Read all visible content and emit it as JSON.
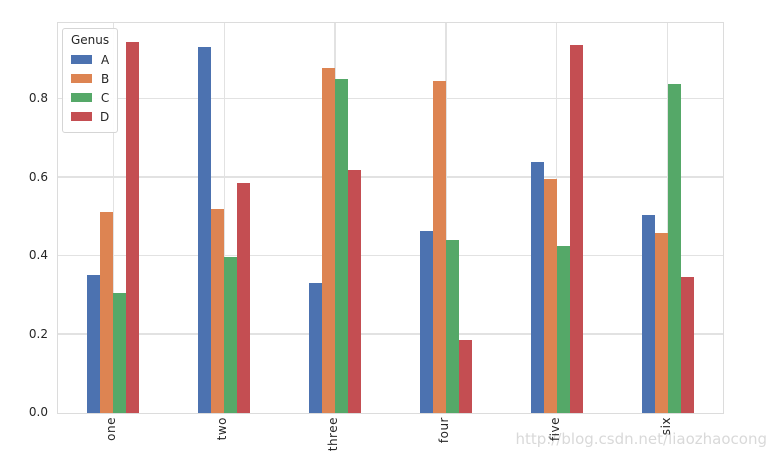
{
  "chart_data": {
    "type": "bar",
    "title": "",
    "categories": [
      "one",
      "two",
      "three",
      "four",
      "five",
      "six"
    ],
    "series": [
      {
        "name": "A",
        "color": "#4C72B0",
        "values": [
          0.353,
          0.932,
          0.332,
          0.464,
          0.64,
          0.504
        ]
      },
      {
        "name": "B",
        "color": "#DD8452",
        "values": [
          0.512,
          0.519,
          0.88,
          0.846,
          0.596,
          0.459
        ]
      },
      {
        "name": "C",
        "color": "#55A868",
        "values": [
          0.305,
          0.398,
          0.852,
          0.44,
          0.426,
          0.839
        ]
      },
      {
        "name": "D",
        "color": "#C44E52",
        "values": [
          0.946,
          0.585,
          0.619,
          0.186,
          0.939,
          0.346
        ]
      }
    ],
    "y_ticks": [
      "0.0",
      "0.2",
      "0.4",
      "0.6",
      "0.8"
    ],
    "ylim": [
      0,
      0.994
    ],
    "grid": true,
    "x_tick_rotation": 90,
    "legend": {
      "title": "Genus",
      "position": "upper-left"
    }
  },
  "watermark": "http://blog.csdn.net/liaozhaocong",
  "colors": {
    "grid": "#e2e2e2",
    "spine": "#dcdcdc",
    "tick_label": "#262626",
    "watermark": "#d9d9d9",
    "background": "#ffffff"
  }
}
